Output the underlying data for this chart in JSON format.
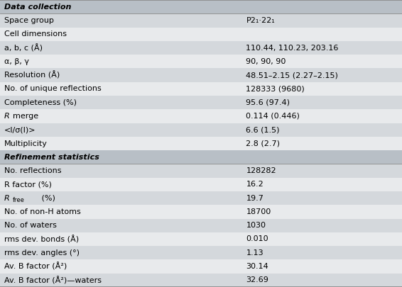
{
  "rows": [
    {
      "label": "Data collection",
      "value": "",
      "bold": true,
      "italic": true,
      "header": true,
      "shaded": false
    },
    {
      "label": "Space group",
      "value": "P2₁·22₁",
      "bold": false,
      "italic": false,
      "header": false,
      "shaded": true
    },
    {
      "label": "Cell dimensions",
      "value": "",
      "bold": false,
      "italic": false,
      "header": false,
      "shaded": false
    },
    {
      "label": "a, b, c (Å)",
      "value": "110.44, 110.23, 203.16",
      "bold": false,
      "italic": false,
      "header": false,
      "shaded": true
    },
    {
      "label": "α, β, γ",
      "value": "90, 90, 90",
      "bold": false,
      "italic": false,
      "header": false,
      "shaded": false
    },
    {
      "label": "Resolution (Å)",
      "value": "48.51–2.15 (2.27–2.15)",
      "bold": false,
      "italic": false,
      "header": false,
      "shaded": true
    },
    {
      "label": "No. of unique reflections",
      "value": "128333 (9680)",
      "bold": false,
      "italic": false,
      "header": false,
      "shaded": false
    },
    {
      "label": "Completeness (%)",
      "value": "95.6 (97.4)",
      "bold": false,
      "italic": false,
      "header": false,
      "shaded": true
    },
    {
      "label": "Rmerge",
      "value": "0.114 (0.446)",
      "bold": false,
      "italic": false,
      "header": false,
      "shaded": false,
      "special": "rmerge"
    },
    {
      "label": "<I/σ(I)>",
      "value": "6.6 (1.5)",
      "bold": false,
      "italic": false,
      "header": false,
      "shaded": true
    },
    {
      "label": "Multiplicity",
      "value": "2.8 (2.7)",
      "bold": false,
      "italic": false,
      "header": false,
      "shaded": false
    },
    {
      "label": "Refinement statistics",
      "value": "",
      "bold": true,
      "italic": true,
      "header": true,
      "shaded": false
    },
    {
      "label": "No. reflections",
      "value": "128282",
      "bold": false,
      "italic": false,
      "header": false,
      "shaded": true
    },
    {
      "label": "R factor (%)",
      "value": "16.2",
      "bold": false,
      "italic": false,
      "header": false,
      "shaded": false
    },
    {
      "label": "R_free (%)",
      "value": "19.7",
      "bold": false,
      "italic": false,
      "header": false,
      "shaded": true,
      "special": "rfree"
    },
    {
      "label": "No. of non-H atoms",
      "value": "18700",
      "bold": false,
      "italic": false,
      "header": false,
      "shaded": false
    },
    {
      "label": "No. of waters",
      "value": "1030",
      "bold": false,
      "italic": false,
      "header": false,
      "shaded": true
    },
    {
      "label": "rms dev. bonds (Å)",
      "value": "0.010",
      "bold": false,
      "italic": false,
      "header": false,
      "shaded": false
    },
    {
      "label": "rms dev. angles (°)",
      "value": "1.13",
      "bold": false,
      "italic": false,
      "header": false,
      "shaded": true
    },
    {
      "label": "Av. B factor (Å²)",
      "value": "30.14",
      "bold": false,
      "italic": false,
      "header": false,
      "shaded": false
    },
    {
      "label": "Av. B factor (Å²)—waters",
      "value": "32.69",
      "bold": false,
      "italic": false,
      "header": false,
      "shaded": true
    }
  ],
  "shaded_color": "#d4d8dc",
  "header_color": "#b8bfc6",
  "bg_color": "#e8eaec",
  "border_color": "#888888",
  "font_size": 8.0,
  "col_split": 0.6
}
